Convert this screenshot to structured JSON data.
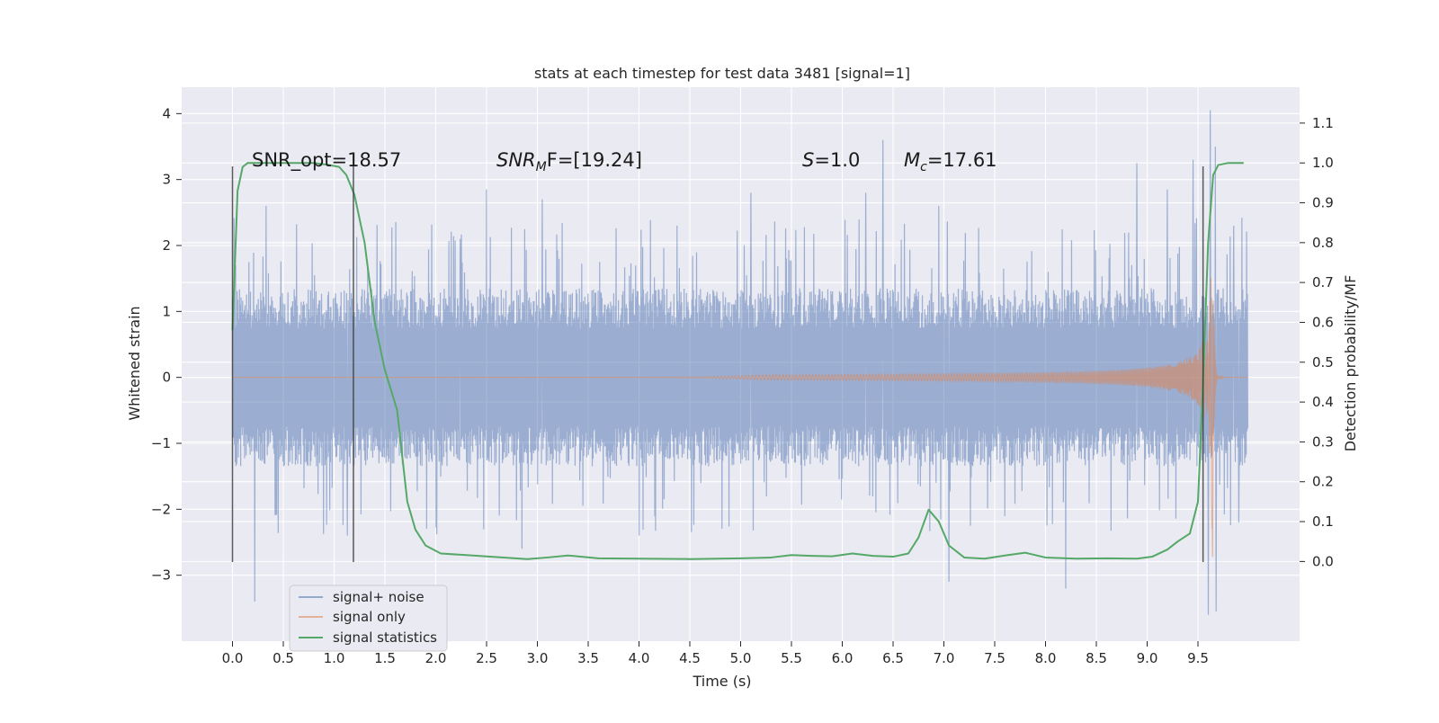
{
  "chart_data": {
    "type": "line",
    "title": "stats at each timestep for test data 3481 [signal=1]",
    "xlabel": "Time (s)",
    "ylabel": "Whitened strain",
    "ylabel_right": "Detection probability/MF",
    "xlim": [
      -0.5,
      10.5
    ],
    "ylim": [
      -4.0,
      4.4
    ],
    "ylim_right": [
      -0.2,
      1.19
    ],
    "x_ticks": [
      0.0,
      0.5,
      1.0,
      1.5,
      2.0,
      2.5,
      3.0,
      3.5,
      4.0,
      4.5,
      5.0,
      5.5,
      6.0,
      6.5,
      7.0,
      7.5,
      8.0,
      8.5,
      9.0,
      9.5
    ],
    "x_tick_labels": [
      "0.0",
      "0.5",
      "1.0",
      "1.5",
      "2.0",
      "2.5",
      "3.0",
      "3.5",
      "4.0",
      "4.5",
      "5.0",
      "5.5",
      "6.0",
      "6.5",
      "7.0",
      "7.5",
      "8.0",
      "8.5",
      "9.0",
      "9.5"
    ],
    "y_ticks": [
      4,
      3,
      2,
      1,
      0,
      -1,
      -2,
      -3
    ],
    "y_tick_labels": [
      "4",
      "3",
      "2",
      "1",
      "0",
      "−1",
      "−2",
      "−3"
    ],
    "y_ticks_right": [
      1.1,
      1.0,
      0.9,
      0.8,
      0.7,
      0.6,
      0.5,
      0.4,
      0.3,
      0.2,
      0.1,
      0.0
    ],
    "y_tick_labels_right": [
      "1.1",
      "1.0",
      "0.9",
      "0.8",
      "0.7",
      "0.6",
      "0.5",
      "0.4",
      "0.3",
      "0.2",
      "0.1",
      "0.0"
    ],
    "grid": true,
    "legend_position": "lower-left",
    "legend": [
      "signal+ noise",
      "signal only",
      "signal statistics"
    ],
    "annotations": {
      "snr_opt": "SNR_opt=18.57",
      "snr_mf_base": "SNR",
      "snr_mf_sub": "M",
      "snr_mf_rest": "F=[19.24]",
      "s_label": "S",
      "s_value": "=1.0",
      "mc_label": "M",
      "mc_sub": "c",
      "mc_value": "=17.61"
    },
    "vertical_markers": [
      {
        "x": 0.0,
        "y_from": -2.8,
        "y_to": 3.2
      },
      {
        "x": 1.19,
        "y_from": -2.8,
        "y_to": 3.2
      },
      {
        "x": 9.55,
        "y_from": -2.8,
        "y_to": 3.2
      }
    ],
    "series": [
      {
        "name": "signal+ noise",
        "color": "#4c72b0",
        "axis": "left",
        "x_range": [
          0.0,
          9.99
        ],
        "envelope": [
          1.35,
          -1.35
        ],
        "typical_peak": 2.3,
        "notable_peaks": [
          {
            "x": 0.03,
            "y": 1.7
          },
          {
            "x": 0.22,
            "y": -3.4
          },
          {
            "x": 0.33,
            "y": 2.6
          },
          {
            "x": 1.13,
            "y": -2.4
          },
          {
            "x": 2.24,
            "y": 2.1
          },
          {
            "x": 2.5,
            "y": 2.85
          },
          {
            "x": 2.85,
            "y": -2.6
          },
          {
            "x": 3.05,
            "y": 2.7
          },
          {
            "x": 4.0,
            "y": -2.4
          },
          {
            "x": 5.1,
            "y": 2.8
          },
          {
            "x": 6.23,
            "y": 2.8
          },
          {
            "x": 6.4,
            "y": 3.6
          },
          {
            "x": 6.95,
            "y": 2.6
          },
          {
            "x": 7.05,
            "y": -3.1
          },
          {
            "x": 8.2,
            "y": -3.2
          },
          {
            "x": 8.9,
            "y": 3.25
          },
          {
            "x": 9.2,
            "y": 2.85
          },
          {
            "x": 9.45,
            "y": 3.3
          },
          {
            "x": 9.62,
            "y": 4.05
          },
          {
            "x": 9.6,
            "y": -3.6
          },
          {
            "x": 9.67,
            "y": 3.5
          },
          {
            "x": 9.68,
            "y": -3.55
          },
          {
            "x": 9.85,
            "y": 2.3
          },
          {
            "x": 9.9,
            "y": -2.2
          }
        ]
      },
      {
        "name": "signal only",
        "color": "#dd8452",
        "axis": "left",
        "x_range": [
          0.0,
          9.99
        ],
        "chirp_start": 5.2,
        "merger_time": 9.65,
        "peak_amplitude": 3.0
      },
      {
        "name": "signal statistics",
        "color": "#55a868",
        "axis": "right",
        "x": [
          0.0,
          0.05,
          0.1,
          0.15,
          0.25,
          0.4,
          0.6,
          0.8,
          0.95,
          1.05,
          1.12,
          1.2,
          1.3,
          1.4,
          1.5,
          1.62,
          1.72,
          1.8,
          1.9,
          2.05,
          2.3,
          2.6,
          2.9,
          3.1,
          3.3,
          3.6,
          4.0,
          4.5,
          5.0,
          5.3,
          5.5,
          5.7,
          5.9,
          6.1,
          6.3,
          6.5,
          6.65,
          6.75,
          6.85,
          6.95,
          7.05,
          7.2,
          7.4,
          7.6,
          7.8,
          8.0,
          8.3,
          8.6,
          8.9,
          9.05,
          9.2,
          9.3,
          9.42,
          9.5,
          9.55,
          9.6,
          9.65,
          9.7,
          9.8,
          9.9,
          9.95
        ],
        "y": [
          0.58,
          0.93,
          0.99,
          1.0,
          1.0,
          1.0,
          1.0,
          1.0,
          0.995,
          0.99,
          0.97,
          0.92,
          0.8,
          0.6,
          0.48,
          0.38,
          0.15,
          0.08,
          0.04,
          0.02,
          0.016,
          0.011,
          0.006,
          0.01,
          0.015,
          0.008,
          0.007,
          0.006,
          0.008,
          0.01,
          0.016,
          0.014,
          0.013,
          0.02,
          0.014,
          0.012,
          0.02,
          0.06,
          0.13,
          0.1,
          0.04,
          0.01,
          0.007,
          0.015,
          0.022,
          0.01,
          0.007,
          0.008,
          0.007,
          0.012,
          0.03,
          0.05,
          0.07,
          0.15,
          0.45,
          0.8,
          0.97,
          0.995,
          1.0,
          1.0,
          1.0
        ]
      }
    ]
  }
}
